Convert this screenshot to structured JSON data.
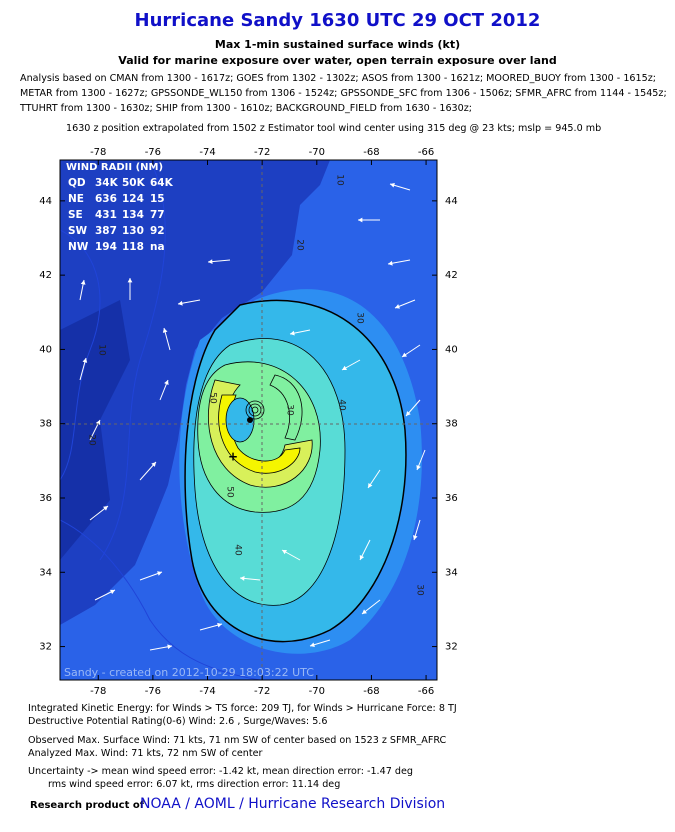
{
  "header": {
    "title": "Hurricane Sandy 1630 UTC 29 OCT 2012",
    "subtitle": "Max 1-min sustained surface winds (kt)",
    "subtitle2": "Valid for marine exposure over water, open terrain exposure over land",
    "analysis": [
      "Analysis based on CMAN from 1300 - 1617z; GOES from 1302 - 1302z; ASOS from 1300 - 1621z; MOORED_BUOY from 1300 - 1615z;",
      "METAR from 1300 - 1627z; GPSSONDE_WL150 from 1306 - 1524z; GPSSONDE_SFC from 1306 - 1506z; SFMR_AFRC from 1144 - 1545z;",
      "TTUHRT from 1300 - 1630z; SHIP from 1300 - 1610z; BACKGROUND_FIELD from 1630 - 1630z;"
    ],
    "position_note": "1630 z position extrapolated from 1502 z Estimator tool wind center using 315 deg @ 23 kts; mslp = 945.0 mb"
  },
  "map": {
    "xlim": [
      -79.4,
      -65.6
    ],
    "ylim": [
      31.1,
      45.1
    ],
    "xticks": [
      -78,
      -76,
      -74,
      -72,
      -70,
      -68,
      -66
    ],
    "yticks": [
      32,
      34,
      36,
      38,
      40,
      42,
      44
    ],
    "wind_radii": {
      "title": "WIND RADII (NM)",
      "rows": [
        [
          "QD",
          "34K",
          "50K",
          "64K"
        ],
        [
          "NE",
          "636",
          "124",
          "15"
        ],
        [
          "SE",
          "431",
          "134",
          "77"
        ],
        [
          "SW",
          "387",
          "130",
          "92"
        ],
        [
          "NW",
          "194",
          "118",
          "na"
        ]
      ]
    },
    "contour_labels": [
      "10",
      "10",
      "20",
      "20",
      "30",
      "30",
      "30",
      "40",
      "40",
      "50",
      "50"
    ],
    "credit": "Sandy - created on 2012-10-29 18:03:22 UTC"
  },
  "footer": {
    "lines": [
      "Integrated Kinetic Energy: for Winds > TS force: 209 TJ, for Winds > Hurricane Force: 8 TJ",
      "Destructive Potential Rating(0-6)  Wind: 2.6 , Surge/Waves: 5.6",
      "Observed Max. Surface Wind: 71 kts, 71 nm SW of center based on 1523 z SFMR_AFRC",
      "Analyzed Max. Wind: 71 kts, 72 nm  SW of center",
      "Uncertainty -> mean wind speed error:  -1.42 kt, mean direction error:  -1.47 deg",
      "rms wind speed error: 6.07 kt, rms direction error: 11.14 deg"
    ],
    "research_label": "Research product of",
    "organization": "NOAA / AOML / Hurricane Research Division"
  }
}
